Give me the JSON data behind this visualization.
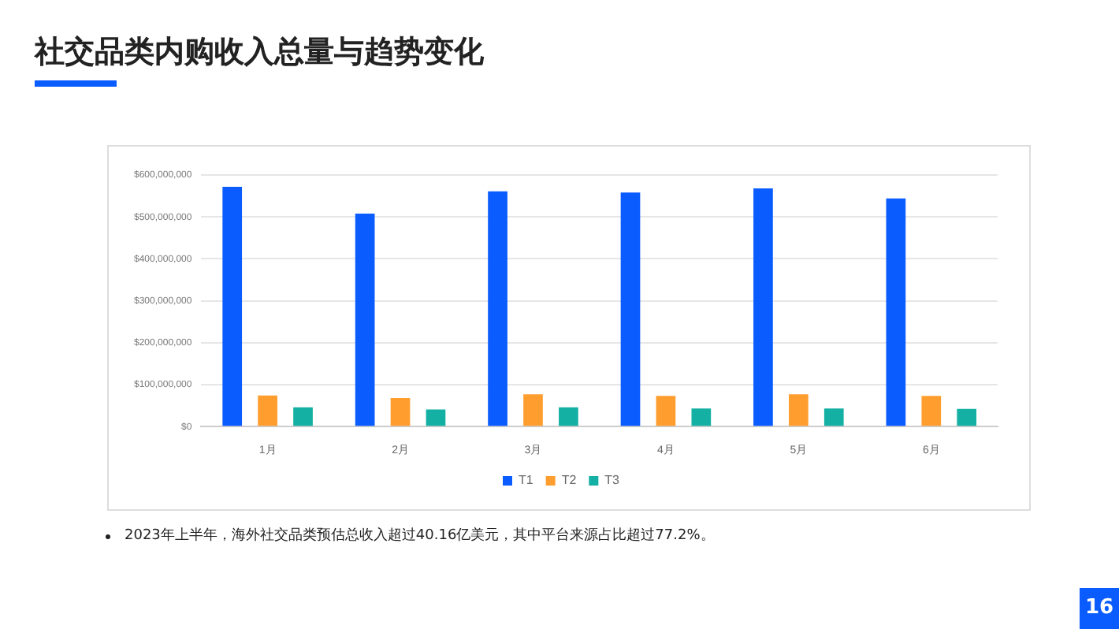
{
  "chart_data": {
    "type": "bar",
    "title": "社交品类内购收入总量与趋势变化",
    "categories": [
      "1月",
      "2月",
      "3月",
      "4月",
      "5月",
      "6月"
    ],
    "series": [
      {
        "name": "T1",
        "color": "#0a5cff",
        "values": [
          572000000,
          508000000,
          561000000,
          558000000,
          568000000,
          544000000
        ]
      },
      {
        "name": "T2",
        "color": "#ff9e2f",
        "values": [
          74000000,
          68000000,
          77000000,
          73000000,
          77000000,
          73000000
        ]
      },
      {
        "name": "T3",
        "color": "#14b0a4",
        "values": [
          46000000,
          41000000,
          46000000,
          43000000,
          43000000,
          42000000
        ]
      }
    ],
    "ylim": [
      0,
      600000000
    ],
    "yticks": [
      {
        "value": 0,
        "label": "$0"
      },
      {
        "value": 100000000,
        "label": "$100,000,000"
      },
      {
        "value": 200000000,
        "label": "$200,000,000"
      },
      {
        "value": 300000000,
        "label": "$300,000,000"
      },
      {
        "value": 400000000,
        "label": "$400,000,000"
      },
      {
        "value": 500000000,
        "label": "$500,000,000"
      },
      {
        "value": 600000000,
        "label": "$600,000,000"
      }
    ],
    "grid": "y",
    "legend": "bottom",
    "annotations": [
      "2023年上半年，海外社交品类预估总收入超过40.16亿美元，其中平台来源占比超过77.2%。",
      "16"
    ]
  }
}
